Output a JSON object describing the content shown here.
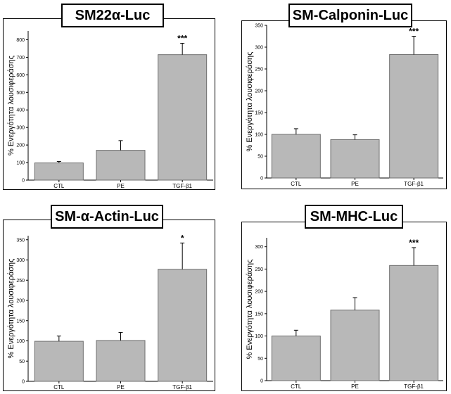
{
  "chart_data": [
    {
      "type": "bar",
      "title": "SM22α-Luc",
      "ylabel": "% Ενεργότητα λουσιφεράσης",
      "categories": [
        "CTL",
        "PE",
        "TGF-β1"
      ],
      "values": [
        98,
        170,
        715
      ],
      "errors": [
        8,
        55,
        65
      ],
      "significance": [
        "",
        "",
        "***"
      ],
      "ylim": [
        0,
        850
      ],
      "yticks": [
        0,
        100,
        200,
        300,
        400,
        500,
        600,
        700,
        800
      ]
    },
    {
      "type": "bar",
      "title": "SM-Calponin-Luc",
      "ylabel": "% Ενεργότητα λουσιφεράσης",
      "categories": [
        "CTL",
        "PE",
        "TGF-β1"
      ],
      "values": [
        100,
        88,
        283
      ],
      "errors": [
        13,
        11,
        42
      ],
      "significance": [
        "",
        "",
        "***"
      ],
      "ylim": [
        0,
        350
      ],
      "yticks": [
        0,
        50,
        100,
        150,
        200,
        250,
        300,
        350
      ]
    },
    {
      "type": "bar",
      "title": "SM-α-Actin-Luc",
      "ylabel": "% Ενεργότητα λουσιφεράσης",
      "categories": [
        "CTL",
        "PE",
        "TGF-β1"
      ],
      "values": [
        99,
        101,
        277
      ],
      "errors": [
        13,
        20,
        65
      ],
      "significance": [
        "",
        "",
        "*"
      ],
      "ylim": [
        0,
        360
      ],
      "yticks": [
        0,
        50,
        100,
        150,
        200,
        250,
        300,
        350
      ]
    },
    {
      "type": "bar",
      "title": "SM-MHC-Luc",
      "ylabel": "% Ενεργότητα λουσιφεράσης",
      "categories": [
        "CTL",
        "PE",
        "TGF-β1"
      ],
      "values": [
        100,
        158,
        258
      ],
      "errors": [
        13,
        28,
        40
      ],
      "significance": [
        "",
        "",
        "***"
      ],
      "ylim": [
        0,
        320
      ],
      "yticks": [
        0,
        50,
        100,
        150,
        200,
        250,
        300
      ]
    }
  ]
}
